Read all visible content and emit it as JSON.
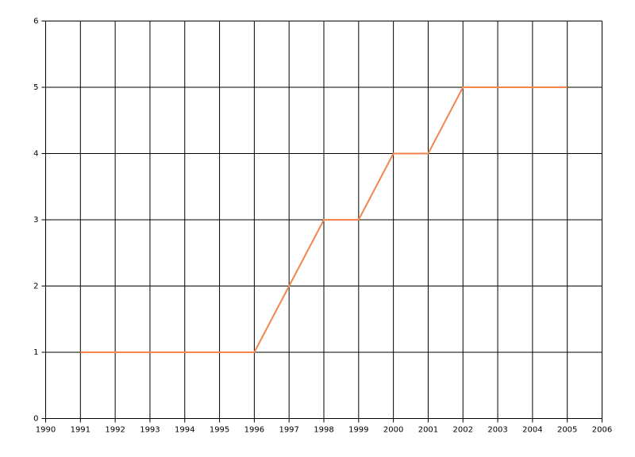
{
  "chart_data": {
    "type": "line",
    "x": [
      1991,
      1992,
      1993,
      1994,
      1995,
      1996,
      1997,
      1998,
      1999,
      2000,
      2001,
      2002,
      2003,
      2004,
      2005
    ],
    "series": [
      {
        "color": "#f5854a",
        "values": [
          1,
          1,
          1,
          1,
          1,
          1,
          2,
          3,
          3,
          4,
          4,
          5,
          5,
          5,
          5
        ]
      }
    ],
    "xlim": [
      1990,
      2006
    ],
    "xticks": [
      1990,
      1991,
      1992,
      1993,
      1994,
      1995,
      1996,
      1997,
      1998,
      1999,
      2000,
      2001,
      2002,
      2003,
      2004,
      2005,
      2006
    ],
    "ylim": [
      0,
      6
    ],
    "yticks": [
      0,
      1,
      2,
      3,
      4,
      5,
      6
    ],
    "grid": true
  }
}
